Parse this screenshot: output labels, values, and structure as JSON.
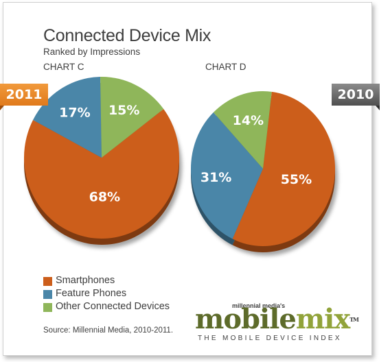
{
  "header": {
    "title": "Connected Device Mix",
    "subtitle": "Ranked by Impressions",
    "year_tag_left": "2011",
    "year_tag_right": "2010"
  },
  "legend": [
    {
      "label": "Smartphones",
      "color": "#cc5e1b"
    },
    {
      "label": "Feature Phones",
      "color": "#4a86a8"
    },
    {
      "label": "Other Connected Devices",
      "color": "#8fb65a"
    }
  ],
  "footer": {
    "source": "Source: Millennial Media, 2010-2011.",
    "brand_small": "millennial media's",
    "wordmark_part1": "mobile",
    "wordmark_part2": "mix",
    "trademark": "TM",
    "tagline": "THE MOBILE DEVICE INDEX"
  },
  "chart_data": [
    {
      "type": "pie",
      "title": "CHART C",
      "year": "2011",
      "slices": [
        {
          "label": "Smartphones",
          "value": 68,
          "display": "68%",
          "color": "#cc5e1b"
        },
        {
          "label": "Feature Phones",
          "value": 17,
          "display": "17%",
          "color": "#4a86a8"
        },
        {
          "label": "Other Connected Devices",
          "value": 15,
          "display": "15%",
          "color": "#8fb65a"
        }
      ]
    },
    {
      "type": "pie",
      "title": "CHART D",
      "year": "2010",
      "slices": [
        {
          "label": "Smartphones",
          "value": 55,
          "display": "55%",
          "color": "#cc5e1b"
        },
        {
          "label": "Feature Phones",
          "value": 31,
          "display": "31%",
          "color": "#4a86a8"
        },
        {
          "label": "Other Connected Devices",
          "value": 14,
          "display": "14%",
          "color": "#8fb65a"
        }
      ]
    }
  ]
}
